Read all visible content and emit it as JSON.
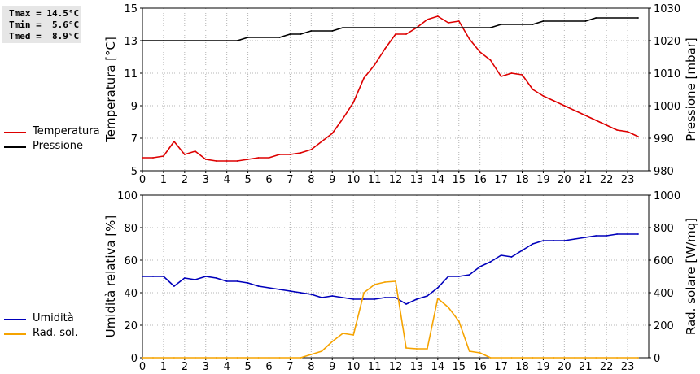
{
  "stats": {
    "tmax": "Tmax = 14.5°C",
    "tmin": "Tmin =  5.6°C",
    "tmed": "Tmed =  8.9°C"
  },
  "legend_top": [
    {
      "label": "Temperatura",
      "color": "#dd0000"
    },
    {
      "label": "Pressione",
      "color": "#000000"
    }
  ],
  "legend_bottom": [
    {
      "label": "Umidità",
      "color": "#0000bb"
    },
    {
      "label": "Rad. sol.",
      "color": "#f5a300"
    }
  ],
  "chart_data": [
    {
      "type": "line",
      "x_ticks": [
        "0",
        "1",
        "2",
        "3",
        "4",
        "5",
        "6",
        "7",
        "8",
        "9",
        "10",
        "11",
        "12",
        "13",
        "14",
        "15",
        "16",
        "17",
        "18",
        "19",
        "20",
        "21",
        "22",
        "23"
      ],
      "xlim": [
        0,
        24
      ],
      "ylabel": "Temperatura [°C]",
      "ylim": [
        5,
        15
      ],
      "y_ticks": [
        "5",
        "7",
        "9",
        "11",
        "13",
        "15"
      ],
      "y2label": "Pressione [mbar]",
      "y2lim": [
        980,
        1030
      ],
      "y2_ticks": [
        "980",
        "990",
        "1000",
        "1010",
        "1020",
        "1030"
      ],
      "grid": true,
      "legend": "left",
      "series": [
        {
          "name": "Temperatura",
          "axis": "left",
          "color": "#dd0000",
          "points": [
            [
              0,
              5.8
            ],
            [
              0.5,
              5.8
            ],
            [
              1,
              5.9
            ],
            [
              1.5,
              6.8
            ],
            [
              2,
              6.0
            ],
            [
              2.5,
              6.2
            ],
            [
              3,
              5.7
            ],
            [
              3.5,
              5.6
            ],
            [
              4,
              5.6
            ],
            [
              4.5,
              5.6
            ],
            [
              5,
              5.7
            ],
            [
              5.5,
              5.8
            ],
            [
              6,
              5.8
            ],
            [
              6.5,
              6.0
            ],
            [
              7,
              6.0
            ],
            [
              7.5,
              6.1
            ],
            [
              8,
              6.3
            ],
            [
              8.5,
              6.8
            ],
            [
              9,
              7.3
            ],
            [
              9.5,
              8.2
            ],
            [
              10,
              9.2
            ],
            [
              10.5,
              10.7
            ],
            [
              11,
              11.5
            ],
            [
              11.5,
              12.5
            ],
            [
              12,
              13.4
            ],
            [
              12.5,
              13.4
            ],
            [
              13,
              13.8
            ],
            [
              13.5,
              14.3
            ],
            [
              14,
              14.5
            ],
            [
              14.5,
              14.1
            ],
            [
              15,
              14.2
            ],
            [
              15.5,
              13.1
            ],
            [
              16,
              12.3
            ],
            [
              16.5,
              11.8
            ],
            [
              17,
              10.8
            ],
            [
              17.5,
              11.0
            ],
            [
              18,
              10.9
            ],
            [
              18.5,
              10.0
            ],
            [
              19,
              9.6
            ],
            [
              19.5,
              9.3
            ],
            [
              20,
              9.0
            ],
            [
              20.5,
              8.7
            ],
            [
              21,
              8.4
            ],
            [
              21.5,
              8.1
            ],
            [
              22,
              7.8
            ],
            [
              22.5,
              7.5
            ],
            [
              23,
              7.4
            ],
            [
              23.5,
              7.1
            ]
          ]
        },
        {
          "name": "Pressione",
          "axis": "right",
          "color": "#000000",
          "points": [
            [
              0,
              1020
            ],
            [
              4.5,
              1020
            ],
            [
              5,
              1021
            ],
            [
              6.5,
              1021
            ],
            [
              7,
              1022
            ],
            [
              7.5,
              1022
            ],
            [
              8,
              1023
            ],
            [
              9,
              1023
            ],
            [
              9.5,
              1024
            ],
            [
              16.5,
              1024
            ],
            [
              17,
              1025
            ],
            [
              18.5,
              1025
            ],
            [
              19,
              1026
            ],
            [
              21,
              1026
            ],
            [
              21.5,
              1027
            ],
            [
              23.5,
              1027
            ]
          ]
        }
      ]
    },
    {
      "type": "line",
      "x_ticks": [
        "0",
        "1",
        "2",
        "3",
        "4",
        "5",
        "6",
        "7",
        "8",
        "9",
        "10",
        "11",
        "12",
        "13",
        "14",
        "15",
        "16",
        "17",
        "18",
        "19",
        "20",
        "21",
        "22",
        "23"
      ],
      "xlim": [
        0,
        24
      ],
      "ylabel": "Umidità relativa [%]",
      "ylim": [
        0,
        100
      ],
      "y_ticks": [
        "0",
        "20",
        "40",
        "60",
        "80",
        "100"
      ],
      "y2label": "Rad. solare [W/mq]",
      "y2lim": [
        0,
        1000
      ],
      "y2_ticks": [
        "0",
        "200",
        "400",
        "600",
        "800",
        "1000"
      ],
      "grid": true,
      "legend": "left",
      "series": [
        {
          "name": "Umidità",
          "axis": "left",
          "color": "#0000bb",
          "points": [
            [
              0,
              50
            ],
            [
              0.5,
              50
            ],
            [
              1,
              50
            ],
            [
              1.5,
              44
            ],
            [
              2,
              49
            ],
            [
              2.5,
              48
            ],
            [
              3,
              50
            ],
            [
              3.5,
              49
            ],
            [
              4,
              47
            ],
            [
              4.5,
              47
            ],
            [
              5,
              46
            ],
            [
              5.5,
              44
            ],
            [
              6,
              43
            ],
            [
              6.5,
              42
            ],
            [
              7,
              41
            ],
            [
              7.5,
              40
            ],
            [
              8,
              39
            ],
            [
              8.5,
              37
            ],
            [
              9,
              38
            ],
            [
              9.5,
              37
            ],
            [
              10,
              36
            ],
            [
              10.5,
              36
            ],
            [
              11,
              36
            ],
            [
              11.5,
              37
            ],
            [
              12,
              37
            ],
            [
              12.5,
              33
            ],
            [
              13,
              36
            ],
            [
              13.5,
              38
            ],
            [
              14,
              43
            ],
            [
              14.5,
              50
            ],
            [
              15,
              50
            ],
            [
              15.5,
              51
            ],
            [
              16,
              56
            ],
            [
              16.5,
              59
            ],
            [
              17,
              63
            ],
            [
              17.5,
              62
            ],
            [
              18,
              66
            ],
            [
              18.5,
              70
            ],
            [
              19,
              72
            ],
            [
              19.5,
              72
            ],
            [
              20,
              72
            ],
            [
              20.5,
              73
            ],
            [
              21,
              74
            ],
            [
              21.5,
              75
            ],
            [
              22,
              75
            ],
            [
              22.5,
              76
            ],
            [
              23,
              76
            ],
            [
              23.5,
              76
            ]
          ]
        },
        {
          "name": "Rad. sol.",
          "axis": "right",
          "color": "#f5a300",
          "points": [
            [
              0,
              0
            ],
            [
              0.5,
              0
            ],
            [
              1,
              0
            ],
            [
              1.5,
              0
            ],
            [
              2,
              0
            ],
            [
              2.5,
              0
            ],
            [
              3,
              0
            ],
            [
              3.5,
              0
            ],
            [
              4,
              0
            ],
            [
              4.5,
              0
            ],
            [
              5,
              0
            ],
            [
              5.5,
              0
            ],
            [
              6,
              0
            ],
            [
              6.5,
              0
            ],
            [
              7,
              0
            ],
            [
              7.5,
              0
            ],
            [
              8,
              20
            ],
            [
              8.5,
              40
            ],
            [
              9,
              100
            ],
            [
              9.5,
              150
            ],
            [
              10,
              140
            ],
            [
              10.5,
              400
            ],
            [
              11,
              450
            ],
            [
              11.5,
              465
            ],
            [
              12,
              470
            ],
            [
              12.5,
              60
            ],
            [
              13,
              55
            ],
            [
              13.5,
              55
            ],
            [
              14,
              365
            ],
            [
              14.5,
              310
            ],
            [
              15,
              225
            ],
            [
              15.5,
              40
            ],
            [
              16,
              30
            ],
            [
              16.5,
              0
            ],
            [
              17,
              0
            ],
            [
              17.5,
              0
            ],
            [
              18,
              0
            ],
            [
              18.5,
              0
            ],
            [
              19,
              0
            ],
            [
              19.5,
              0
            ],
            [
              20,
              0
            ],
            [
              20.5,
              0
            ],
            [
              21,
              0
            ],
            [
              21.5,
              0
            ],
            [
              22,
              0
            ],
            [
              22.5,
              0
            ],
            [
              23,
              0
            ],
            [
              23.5,
              0
            ]
          ]
        }
      ]
    }
  ]
}
